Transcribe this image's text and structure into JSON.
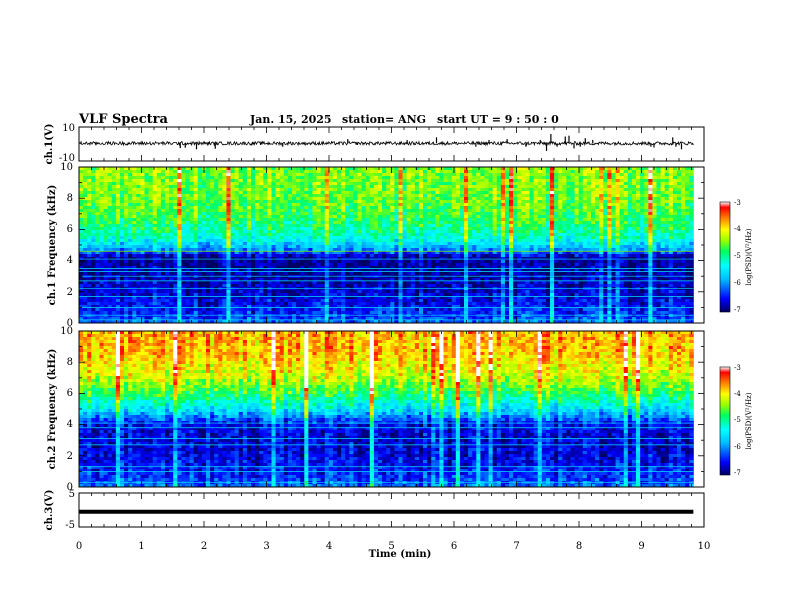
{
  "header": {
    "title": "VLF Spectra",
    "date": "Jan. 15, 2025",
    "station": "station= ANG",
    "start": "start UT = 9 : 50 : 0"
  },
  "colors": {
    "colormap": [
      "#00008b",
      "#0000ff",
      "#00bfff",
      "#00ffff",
      "#00ff7f",
      "#7fff00",
      "#ffff00",
      "#ff8c00",
      "#ff0000",
      "#ffffff"
    ],
    "trace": "#000000"
  },
  "chart_data": [
    {
      "type": "line",
      "name": "ch1-waveform",
      "ylabel": "ch.1(V)",
      "ylim": [
        -10,
        10
      ],
      "yticks": [
        "10",
        "-10"
      ],
      "x_range": [
        0,
        9.83
      ],
      "baseline": 0.4,
      "noise_amplitude": 1.0,
      "spikes": [
        {
          "x": 1.62,
          "y": -2.8
        },
        {
          "x": 1.7,
          "y": -2.6
        },
        {
          "x": 1.88,
          "y": -3.5
        },
        {
          "x": 2.18,
          "y": -3.2
        },
        {
          "x": 3.26,
          "y": -2.0
        },
        {
          "x": 4.3,
          "y": 2.5
        },
        {
          "x": 5.25,
          "y": 2.0
        },
        {
          "x": 5.72,
          "y": 3.5
        },
        {
          "x": 6.35,
          "y": -2.0
        },
        {
          "x": 6.56,
          "y": 2.0
        },
        {
          "x": 6.85,
          "y": 2.5
        },
        {
          "x": 7.15,
          "y": -2.0
        },
        {
          "x": 7.38,
          "y": 2.0
        },
        {
          "x": 7.48,
          "y": -4.5
        },
        {
          "x": 7.55,
          "y": 5.5
        },
        {
          "x": 7.65,
          "y": -2.0
        },
        {
          "x": 7.78,
          "y": 4.0
        },
        {
          "x": 7.84,
          "y": 4.5
        },
        {
          "x": 7.92,
          "y": -3.0
        },
        {
          "x": 8.02,
          "y": -2.0
        },
        {
          "x": 8.1,
          "y": 3.0
        },
        {
          "x": 8.22,
          "y": 2.0
        },
        {
          "x": 9.15,
          "y": -2.0
        },
        {
          "x": 9.2,
          "y": -2.5
        },
        {
          "x": 9.5,
          "y": 3.5
        },
        {
          "x": 9.55,
          "y": -2.0
        },
        {
          "x": 9.64,
          "y": -3.5
        }
      ]
    },
    {
      "type": "heatmap",
      "name": "ch1-spectrogram",
      "ylabel": "ch.1 Frequency (kHz)",
      "ylim": [
        0,
        10
      ],
      "yticks": [
        "0",
        "2",
        "4",
        "6",
        "8",
        "10"
      ],
      "x_range": [
        0,
        9.83
      ],
      "colorbar": {
        "label": "log(PSD)(V²/Hz)",
        "range": [
          -7,
          -3
        ],
        "ticks": [
          "-3",
          "-4",
          "-5",
          "-6",
          "-7"
        ]
      },
      "band_profile": [
        {
          "f": 0.0,
          "v": 0.22
        },
        {
          "f": 0.6,
          "v": 0.15
        },
        {
          "f": 1.2,
          "v": 0.12
        },
        {
          "f": 2.0,
          "v": 0.09
        },
        {
          "f": 3.0,
          "v": 0.05
        },
        {
          "f": 4.2,
          "v": 0.04
        },
        {
          "f": 4.8,
          "v": 0.3
        },
        {
          "f": 5.5,
          "v": 0.46
        },
        {
          "f": 6.5,
          "v": 0.55
        },
        {
          "f": 8.0,
          "v": 0.62
        },
        {
          "f": 10.0,
          "v": 0.64
        }
      ],
      "horizontal_lines_khz": [
        0.2,
        0.5,
        1.0,
        1.7,
        2.2,
        2.7,
        3.0,
        3.3,
        3.5,
        4.1,
        4.6
      ]
    },
    {
      "type": "heatmap",
      "name": "ch2-spectrogram",
      "ylabel": "ch.2 Frequency (kHz)",
      "ylim": [
        0,
        10
      ],
      "yticks": [
        "0",
        "2",
        "4",
        "6",
        "8",
        "10"
      ],
      "x_range": [
        0,
        9.83
      ],
      "colorbar": {
        "label": "log(PSD)(V²/Hz)",
        "range": [
          -7,
          -3
        ],
        "ticks": [
          "-3",
          "-4",
          "-5",
          "-6",
          "-7"
        ]
      },
      "band_profile": [
        {
          "f": 0.0,
          "v": 0.24
        },
        {
          "f": 0.5,
          "v": 0.18
        },
        {
          "f": 1.0,
          "v": 0.14
        },
        {
          "f": 2.0,
          "v": 0.11
        },
        {
          "f": 3.0,
          "v": 0.09
        },
        {
          "f": 4.0,
          "v": 0.12
        },
        {
          "f": 5.0,
          "v": 0.38
        },
        {
          "f": 6.0,
          "v": 0.56
        },
        {
          "f": 7.0,
          "v": 0.7
        },
        {
          "f": 8.5,
          "v": 0.8
        },
        {
          "f": 10.0,
          "v": 0.82
        }
      ],
      "horizontal_lines_khz": [
        0.3,
        1.0,
        1.3,
        2.7,
        3.1,
        3.8,
        4.1
      ]
    },
    {
      "type": "line",
      "name": "ch3-waveform",
      "ylabel": "ch.3(V)",
      "ylim": [
        -5,
        5
      ],
      "yticks": [
        "5",
        "0",
        "-5"
      ],
      "x_range": [
        0,
        9.83
      ],
      "baseline": -0.5
    }
  ],
  "xaxis": {
    "label": "Time (min)",
    "range": [
      0,
      10
    ],
    "ticks": [
      "0",
      "1",
      "2",
      "3",
      "4",
      "5",
      "6",
      "7",
      "8",
      "9",
      "10"
    ]
  }
}
